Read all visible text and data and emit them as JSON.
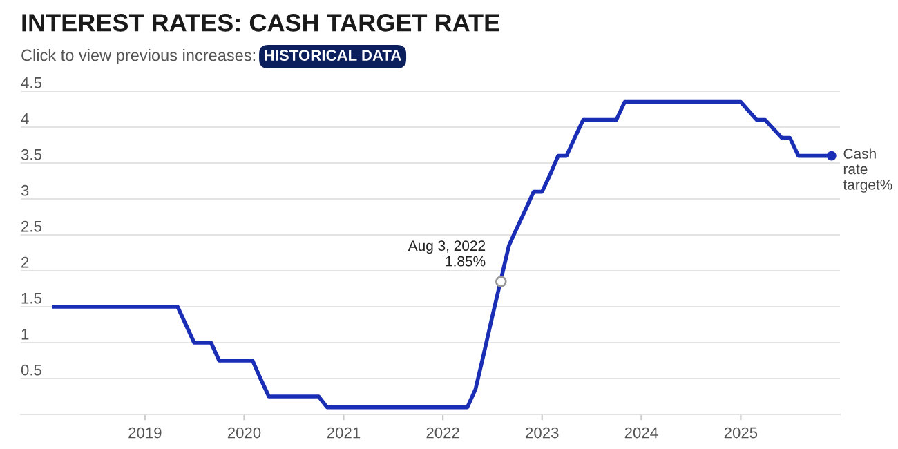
{
  "chart_data": {
    "type": "line",
    "title": "INTEREST RATES: CASH TARGET RATE",
    "subtitle": "Click to view previous increases:",
    "annotations": [
      "HISTORICAL DATA",
      {
        "text": "Aug 3, 2022\n1.85%",
        "x": "2022-08-03",
        "y": 1.85
      }
    ],
    "x": [
      "2018-02-01",
      "2019-05-01",
      "2019-07-01",
      "2019-09-01",
      "2019-10-01",
      "2020-02-01",
      "2020-03-01",
      "2020-04-01",
      "2020-10-01",
      "2020-11-01",
      "2022-04-01",
      "2022-05-01",
      "2022-06-01",
      "2022-07-01",
      "2022-08-01",
      "2022-09-01",
      "2022-10-01",
      "2022-11-01",
      "2022-12-01",
      "2023-01-01",
      "2023-02-01",
      "2023-03-01",
      "2023-04-01",
      "2023-05-01",
      "2023-06-01",
      "2023-10-01",
      "2023-11-01",
      "2025-01-01",
      "2025-03-01",
      "2025-04-01",
      "2025-06-01",
      "2025-07-01",
      "2025-08-01",
      "2025-12-01"
    ],
    "series": [
      {
        "name": "Cash rate target%",
        "color": "#1a2db5",
        "values": [
          1.5,
          1.5,
          1.0,
          1.0,
          0.75,
          0.75,
          0.5,
          0.25,
          0.25,
          0.1,
          0.1,
          0.35,
          0.85,
          1.35,
          1.85,
          2.35,
          2.6,
          2.85,
          3.1,
          3.1,
          3.35,
          3.6,
          3.6,
          3.85,
          4.1,
          4.1,
          4.35,
          4.35,
          4.1,
          4.1,
          3.85,
          3.85,
          3.6,
          3.6
        ]
      }
    ],
    "xlim": [
      "2017-10-01",
      "2026-01-01"
    ],
    "xticks": [
      {
        "value": "2019-01-01",
        "label": "2019"
      },
      {
        "value": "2020-01-01",
        "label": "2020"
      },
      {
        "value": "2021-01-01",
        "label": "2021"
      },
      {
        "value": "2022-01-01",
        "label": "2022"
      },
      {
        "value": "2023-01-01",
        "label": "2023"
      },
      {
        "value": "2024-01-01",
        "label": "2024"
      },
      {
        "value": "2025-01-01",
        "label": "2025"
      }
    ],
    "ylim": [
      0,
      4.5
    ],
    "yticks": [
      {
        "value": 0,
        "label": null
      },
      0.5,
      1,
      1.5,
      2,
      2.5,
      3,
      3.5,
      4,
      4.5
    ],
    "grid": "y",
    "legend": false,
    "marker": "none",
    "line_style": "solid"
  }
}
